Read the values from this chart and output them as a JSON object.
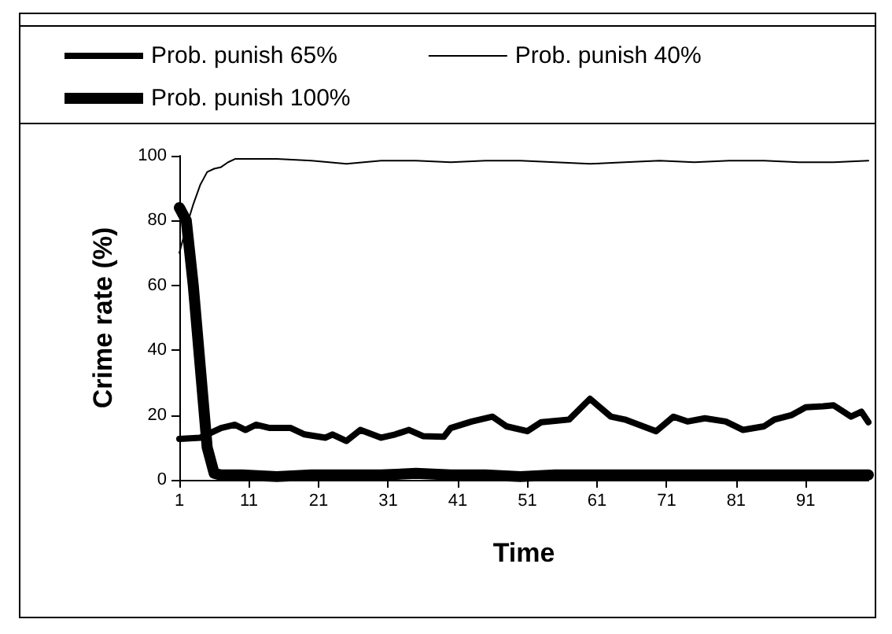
{
  "chart_data": {
    "type": "line",
    "xlabel": "Time",
    "ylabel": "Crime rate (%)",
    "xlim": [
      1,
      100
    ],
    "xticks": [
      1,
      11,
      21,
      31,
      41,
      51,
      61,
      71,
      81,
      91
    ],
    "ylim": [
      0,
      100
    ],
    "yticks": [
      0,
      20,
      40,
      60,
      80,
      100
    ],
    "grid": false,
    "legend": "top",
    "marker": "none",
    "line_style": "solid",
    "series": [
      {
        "name": "Prob. punish 65%",
        "color": "#000000",
        "x": [
          1,
          4,
          5,
          7,
          9,
          10.5,
          12,
          14,
          17,
          19,
          22,
          23,
          25,
          27,
          30,
          32,
          34,
          36,
          39,
          40,
          43,
          46,
          48,
          51,
          53,
          57,
          60,
          63,
          65,
          69.5,
          72,
          74,
          76.5,
          79.5,
          82,
          85,
          86.5,
          89,
          91,
          93.5,
          95,
          97.5,
          99,
          100
        ],
        "values": [
          12.6,
          13,
          14,
          16,
          17,
          15.4,
          17,
          16,
          16,
          14,
          13,
          14,
          12,
          15.4,
          13,
          14,
          15.4,
          13.5,
          13.3,
          16,
          18,
          19.5,
          16.5,
          15,
          17.8,
          18.6,
          25,
          19.5,
          18.6,
          15,
          19.5,
          18,
          19,
          18,
          15.4,
          16.5,
          18.6,
          20,
          22.4,
          22.7,
          23,
          19.5,
          21,
          17.8
        ]
      },
      {
        "name": "Prob. punish 40%",
        "color": "#000000",
        "x": [
          1,
          2,
          3,
          4,
          5,
          6,
          7,
          8,
          9,
          11,
          15,
          20,
          25,
          30,
          35,
          40,
          45,
          50,
          55,
          60,
          65,
          70,
          75,
          80,
          85,
          90,
          95,
          100
        ],
        "values": [
          70,
          78,
          85,
          91,
          95,
          96,
          96.5,
          98,
          99,
          99,
          99,
          98.5,
          97.5,
          98.5,
          98.5,
          98,
          98.5,
          98.5,
          98,
          97.5,
          98,
          98.5,
          98,
          98.5,
          98.5,
          98,
          98,
          98.5
        ]
      },
      {
        "name": "Prob. punish 100%",
        "color": "#000000",
        "x": [
          1,
          2,
          3,
          4,
          5,
          6,
          7,
          10,
          15,
          20,
          25,
          30,
          35,
          40,
          45,
          50,
          55,
          60,
          65,
          70,
          75,
          80,
          85,
          90,
          95,
          100
        ],
        "values": [
          84,
          80,
          60,
          35,
          10,
          2,
          1.5,
          1.5,
          1,
          1.5,
          1.5,
          1.5,
          2,
          1.5,
          1.5,
          1,
          1.5,
          1.5,
          1.5,
          1.5,
          1.5,
          1.5,
          1.5,
          1.5,
          1.5,
          1.5
        ]
      }
    ]
  }
}
